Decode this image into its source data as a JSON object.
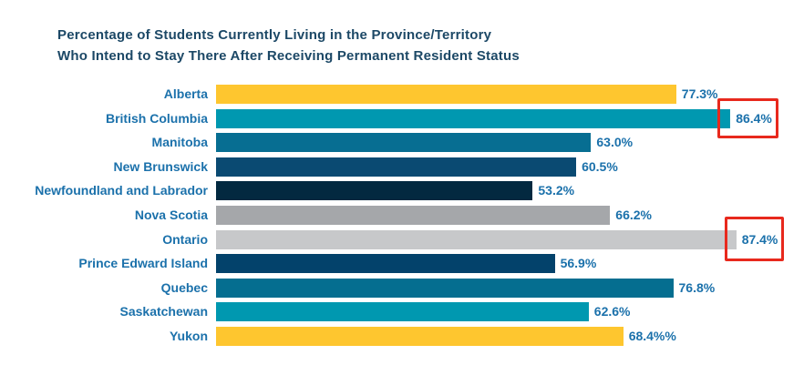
{
  "title": {
    "line1": "Percentage of Students Currently Living in the Province/Territory",
    "line2": "Who Intend to Stay There After Receiving Permanent Resident Status"
  },
  "chart_data": {
    "type": "bar",
    "orientation": "horizontal",
    "title": "Percentage of Students Currently Living in the Province/Territory Who Intend to Stay There After Receiving Permanent Resident Status",
    "categories": [
      "Alberta",
      "British Columbia",
      "Manitoba",
      "New Brunswick",
      "Newfoundland and Labrador",
      "Nova Scotia",
      "Ontario",
      "Prince Edward Island",
      "Quebec",
      "Saskatchewan",
      "Yukon"
    ],
    "values": [
      77.3,
      86.4,
      63.0,
      60.5,
      53.2,
      66.2,
      87.4,
      56.9,
      76.8,
      62.6,
      68.4
    ],
    "value_labels": [
      "77.3%",
      "86.4%",
      "63.0%",
      "60.5%",
      "53.2%",
      "66.2%",
      "87.4%",
      "56.9%",
      "76.8%",
      "62.6%",
      "68.4%%"
    ],
    "bar_colors": [
      "#FEC62F",
      "#0098B0",
      "#076E92",
      "#0A4A72",
      "#032940",
      "#A5A7AA",
      "#C7C8CA",
      "#03426B",
      "#056E90",
      "#0098B0",
      "#FEC62F"
    ],
    "xlim": [
      0,
      100
    ],
    "grid": false,
    "legend": false,
    "highlighted": [
      "British Columbia",
      "Ontario"
    ],
    "highlight_color": "#E8291D",
    "label_color": "#1B71AB",
    "title_color": "#1C4866"
  }
}
